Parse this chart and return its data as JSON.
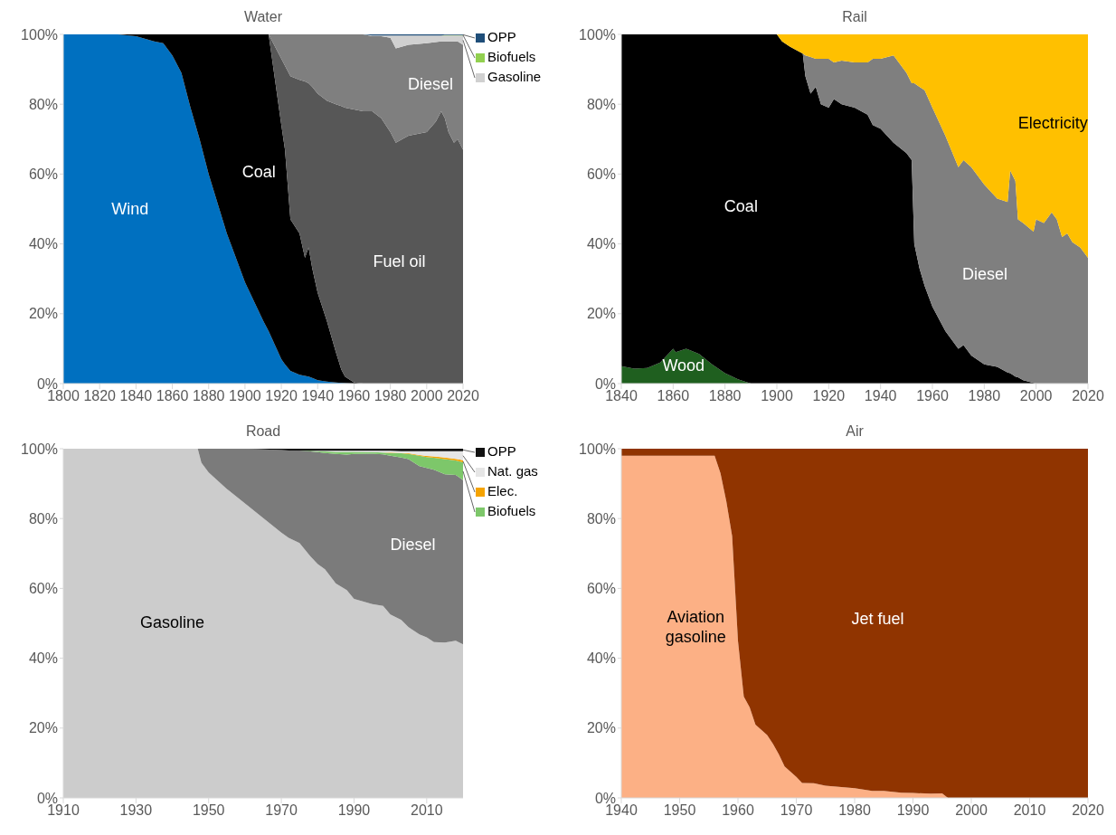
{
  "chart_data": [
    {
      "type": "area",
      "title": "Water",
      "stacked": true,
      "legend": "right",
      "x": [
        1800,
        1810,
        1820,
        1830,
        1840,
        1850,
        1855,
        1860,
        1865,
        1870,
        1875,
        1880,
        1890,
        1900,
        1910,
        1913,
        1920,
        1922,
        1925,
        1930,
        1933,
        1935,
        1937,
        1940,
        1945,
        1950,
        1953,
        1955,
        1960,
        1965,
        1970,
        1975,
        1980,
        1983,
        1990,
        2000,
        2005,
        2008,
        2010,
        2012,
        2015,
        2017,
        2020
      ],
      "xlim": [
        1800,
        2020
      ],
      "xticks": [
        1800,
        1820,
        1840,
        1860,
        1880,
        1900,
        1920,
        1940,
        1960,
        1980,
        2000,
        2020
      ],
      "ylim": [
        0,
        100
      ],
      "yticks": [
        {
          "value": 0,
          "label": "0%"
        },
        {
          "value": 20,
          "label": "20%"
        },
        {
          "value": 40,
          "label": "40%"
        },
        {
          "value": 60,
          "label": "60%"
        },
        {
          "value": 80,
          "label": "80%"
        },
        {
          "value": 100,
          "label": "100%"
        }
      ],
      "series": [
        {
          "name": "Wind",
          "color": "#0070c0",
          "values": [
            100,
            100,
            100,
            100,
            99.5,
            98,
            97.5,
            94,
            89,
            79,
            70,
            60,
            43,
            29,
            18,
            15,
            7,
            5.5,
            3.6,
            2.5,
            2.2,
            2,
            1.6,
            1,
            0.6,
            0.3,
            0.2,
            0.1,
            0,
            null,
            null,
            null,
            null,
            null,
            null,
            null,
            null,
            null,
            null,
            null,
            null,
            null,
            null
          ]
        },
        {
          "name": "Coal",
          "color": "#000000",
          "values": [
            null,
            null,
            null,
            0,
            0.5,
            2,
            2.5,
            6,
            11,
            21,
            30,
            40,
            57,
            71,
            82,
            85,
            67,
            61.5,
            43.4,
            40.5,
            33.8,
            37,
            31.4,
            25,
            17.4,
            8.7,
            3.8,
            1.9,
            0.3,
            0,
            null,
            null,
            null,
            null,
            null,
            null,
            null,
            null,
            null,
            null,
            null,
            null,
            null
          ]
        },
        {
          "name": "Fuel oil",
          "color": "#575757",
          "values": [
            null,
            null,
            null,
            null,
            null,
            null,
            null,
            null,
            null,
            null,
            null,
            null,
            null,
            null,
            null,
            0,
            19,
            24,
            41,
            44,
            50.5,
            47,
            52,
            57,
            63,
            71,
            75.5,
            77,
            78.2,
            78,
            78,
            76,
            72,
            69,
            71,
            72,
            75,
            78,
            76,
            72,
            69,
            70,
            67
          ]
        },
        {
          "name": "Diesel",
          "color": "#7f7f7f",
          "values": [
            null,
            null,
            null,
            null,
            null,
            null,
            null,
            null,
            null,
            null,
            null,
            null,
            null,
            null,
            null,
            0,
            7,
            9,
            12,
            13,
            13.5,
            14,
            15,
            17,
            19,
            20,
            20.5,
            21,
            21.5,
            22,
            21.5,
            23.5,
            27,
            27,
            26,
            25.5,
            22.8,
            20,
            22,
            26,
            29,
            28,
            30
          ]
        },
        {
          "name": "Gasoline",
          "color": "#d0d0d0",
          "values": [
            null,
            null,
            null,
            null,
            null,
            null,
            null,
            null,
            null,
            null,
            null,
            null,
            null,
            null,
            null,
            null,
            null,
            null,
            null,
            null,
            null,
            null,
            null,
            null,
            null,
            null,
            null,
            null,
            null,
            0,
            0.2,
            0.2,
            0.7,
            3.7,
            2.7,
            2.2,
            1.9,
            1.7,
            1.7,
            1.7,
            1.7,
            1.7,
            2.7
          ]
        },
        {
          "name": "Biofuels",
          "color": "#92d050",
          "values": [
            null,
            null,
            null,
            null,
            null,
            null,
            null,
            null,
            null,
            null,
            null,
            null,
            null,
            null,
            null,
            null,
            null,
            null,
            null,
            null,
            null,
            null,
            null,
            null,
            null,
            null,
            null,
            null,
            null,
            null,
            null,
            null,
            null,
            null,
            null,
            null,
            null,
            0,
            0.1,
            0.1,
            0.1,
            0.1,
            0.1
          ]
        },
        {
          "name": "OPP",
          "color": "#1f4e79",
          "values": [
            null,
            null,
            null,
            null,
            null,
            null,
            null,
            null,
            null,
            null,
            null,
            null,
            null,
            null,
            null,
            null,
            null,
            null,
            null,
            null,
            null,
            null,
            null,
            null,
            null,
            null,
            null,
            null,
            null,
            0,
            0.3,
            0.3,
            0.3,
            0.3,
            0.3,
            0.3,
            0.3,
            0.3,
            0.2,
            0.2,
            0.2,
            0.2,
            0.2
          ]
        }
      ]
    },
    {
      "type": "area",
      "title": "Rail",
      "stacked": true,
      "x": [
        1840,
        1845,
        1850,
        1855,
        1860,
        1861,
        1865,
        1870,
        1875,
        1880,
        1885,
        1890,
        1900,
        1902,
        1905,
        1910,
        1911,
        1913,
        1915,
        1917,
        1920,
        1922,
        1925,
        1930,
        1935,
        1937,
        1940,
        1945,
        1950,
        1952,
        1953,
        1955,
        1957,
        1960,
        1965,
        1970,
        1972,
        1975,
        1980,
        1985,
        1989,
        1990,
        1992,
        1993,
        1995,
        1999,
        2000,
        2003,
        2006,
        2008,
        2010,
        2012,
        2014,
        2017,
        2020
      ],
      "xlim": [
        1840,
        2020
      ],
      "xticks": [
        1840,
        1860,
        1880,
        1900,
        1920,
        1940,
        1960,
        1980,
        2000,
        2020
      ],
      "ylim": [
        0,
        100
      ],
      "yticks": [
        {
          "value": 0,
          "label": "0%"
        },
        {
          "value": 20,
          "label": "20%"
        },
        {
          "value": 40,
          "label": "40%"
        },
        {
          "value": 60,
          "label": "60%"
        },
        {
          "value": 80,
          "label": "80%"
        },
        {
          "value": 100,
          "label": "100%"
        }
      ],
      "series": [
        {
          "name": "Wood",
          "color": "#1f5f1f",
          "values": [
            5,
            4.3,
            4.5,
            6,
            10,
            9,
            10,
            8.5,
            5.5,
            3,
            1.2,
            0,
            null,
            null,
            null,
            null,
            null,
            null,
            null,
            null,
            null,
            null,
            null,
            null,
            null,
            null,
            null,
            null,
            null,
            null,
            null,
            null,
            null,
            null,
            null,
            null,
            null,
            null,
            null,
            null,
            null,
            null,
            null,
            null,
            null,
            null,
            null,
            null,
            null,
            null,
            null,
            null,
            null,
            null,
            null
          ]
        },
        {
          "name": "Coal",
          "color": "#000000",
          "values": [
            95,
            95.7,
            95.5,
            94,
            90,
            91,
            90,
            91.5,
            94.5,
            97,
            98.8,
            100,
            100,
            98,
            96.5,
            94.5,
            88,
            83,
            85,
            80,
            79,
            81.5,
            80,
            79,
            77,
            74,
            73,
            69,
            66,
            64,
            40,
            33,
            28,
            22,
            15,
            10,
            11,
            8,
            5.5,
            4.8,
            3.2,
            3,
            2,
            1.8,
            1,
            0.2,
            0,
            null,
            null,
            null,
            null,
            null,
            null,
            null,
            null
          ]
        },
        {
          "name": "Diesel",
          "color": "#7f7f7f",
          "values": [
            null,
            null,
            null,
            null,
            null,
            null,
            null,
            null,
            null,
            null,
            null,
            null,
            null,
            null,
            null,
            0,
            6,
            10.5,
            8,
            13,
            14,
            10.5,
            12.5,
            13,
            15,
            19,
            20,
            25,
            23,
            22,
            46,
            52,
            56,
            57,
            56,
            52,
            53,
            54,
            51.5,
            48.2,
            48.8,
            58,
            56,
            45.2,
            45,
            43.3,
            47,
            46,
            49,
            47,
            42,
            43,
            40.5,
            39,
            36
          ]
        },
        {
          "name": "Electricity",
          "color": "#ffc000",
          "values": [
            null,
            null,
            null,
            null,
            null,
            null,
            null,
            null,
            null,
            null,
            null,
            null,
            0,
            2,
            3.5,
            5.5,
            6,
            6.5,
            7,
            7,
            7,
            8,
            7.5,
            8,
            8,
            7,
            7,
            6,
            11,
            14,
            14,
            15,
            16,
            21,
            29,
            38,
            36,
            38,
            43,
            47,
            48,
            39,
            42,
            53,
            54,
            56.5,
            53,
            54,
            51,
            53,
            58,
            57,
            59.5,
            61,
            64
          ]
        }
      ]
    },
    {
      "type": "area",
      "title": "Road",
      "stacked": true,
      "legend": "right",
      "x": [
        1910,
        1920,
        1930,
        1940,
        1947,
        1948,
        1950,
        1955,
        1960,
        1970,
        1972,
        1975,
        1978,
        1980,
        1982,
        1985,
        1988,
        1990,
        1995,
        1998,
        2000,
        2003,
        2005,
        2008,
        2010,
        2012,
        2015,
        2018,
        2020
      ],
      "xlim": [
        1910,
        2020
      ],
      "xticks": [
        1910,
        1930,
        1950,
        1970,
        1990,
        2010
      ],
      "ylim": [
        0,
        100
      ],
      "yticks": [
        {
          "value": 0,
          "label": "0%"
        },
        {
          "value": 20,
          "label": "20%"
        },
        {
          "value": 40,
          "label": "40%"
        },
        {
          "value": 60,
          "label": "60%"
        },
        {
          "value": 80,
          "label": "80%"
        },
        {
          "value": 100,
          "label": "100%"
        }
      ],
      "series": [
        {
          "name": "Gasoline",
          "color": "#cccccc",
          "values": [
            100,
            100,
            100,
            100,
            100,
            96,
            93.2,
            88.5,
            84.3,
            76,
            74.5,
            73,
            69.2,
            67,
            65.5,
            61.4,
            59.5,
            57,
            55.5,
            55,
            52.5,
            51,
            48.9,
            46.8,
            46,
            44.6,
            44.5,
            45,
            44
          ]
        },
        {
          "name": "Diesel",
          "color": "#7b7b7b",
          "values": [
            null,
            null,
            null,
            null,
            0,
            4,
            6.8,
            11.5,
            15.7,
            23.6,
            25,
            26.4,
            30,
            32,
            33.3,
            37.1,
            38.8,
            41.5,
            43.1,
            43.4,
            45.5,
            46.5,
            48.1,
            48.2,
            48.5,
            49.4,
            48.2,
            47.5,
            47
          ]
        },
        {
          "name": "Biofuels",
          "color": "#7dc76a",
          "values": [
            null,
            null,
            null,
            null,
            null,
            null,
            null,
            null,
            null,
            null,
            null,
            0,
            0.2,
            0.3,
            0.4,
            0.6,
            0.8,
            0.6,
            0.4,
            0.5,
            0.8,
            1.2,
            1.5,
            3,
            3.1,
            3.4,
            4.3,
            4.1,
            5.1
          ]
        },
        {
          "name": "Elec.",
          "color": "#f5a300",
          "values": [
            null,
            null,
            null,
            null,
            null,
            null,
            null,
            null,
            null,
            null,
            null,
            null,
            null,
            null,
            null,
            null,
            null,
            null,
            null,
            0,
            0.1,
            0.1,
            0.2,
            0.2,
            0.3,
            0.4,
            0.5,
            0.5,
            0.6
          ]
        },
        {
          "name": "Nat. gas",
          "color": "#e6e6e6",
          "values": [
            null,
            null,
            null,
            null,
            null,
            null,
            null,
            null,
            null,
            null,
            null,
            null,
            0,
            0.1,
            0.2,
            0.3,
            0.3,
            0.3,
            0.4,
            0.5,
            0.5,
            0.5,
            0.6,
            1.1,
            1.4,
            1.5,
            1.8,
            2.2,
            2.6
          ]
        },
        {
          "name": "OPP",
          "color": "#111111",
          "values": [
            null,
            null,
            null,
            null,
            null,
            null,
            null,
            null,
            0,
            0.4,
            0.5,
            0.6,
            0.6,
            0.6,
            0.6,
            0.6,
            0.6,
            0.6,
            0.6,
            0.6,
            0.6,
            0.7,
            0.7,
            0.7,
            0.7,
            0.7,
            0.7,
            0.7,
            0.7
          ]
        }
      ]
    },
    {
      "type": "area",
      "title": "Air",
      "stacked": true,
      "x": [
        1940,
        1956,
        1957,
        1958,
        1959,
        1960,
        1961,
        1962,
        1963,
        1965,
        1966,
        1967,
        1968,
        1970,
        1971,
        1973,
        1975,
        1980,
        1983,
        1985,
        1988,
        1990,
        1993,
        1995,
        1996,
        2000,
        2010,
        2020
      ],
      "xlim": [
        1940,
        2020
      ],
      "xticks": [
        1940,
        1950,
        1960,
        1970,
        1980,
        1990,
        2000,
        2010,
        2020
      ],
      "ylim": [
        0,
        100
      ],
      "yticks": [
        {
          "value": 0,
          "label": "0%"
        },
        {
          "value": 20,
          "label": "20%"
        },
        {
          "value": 40,
          "label": "40%"
        },
        {
          "value": 60,
          "label": "60%"
        },
        {
          "value": 80,
          "label": "80%"
        },
        {
          "value": 100,
          "label": "100%"
        }
      ],
      "series": [
        {
          "name": "Aviation gasoline",
          "color": "#fcb085",
          "values": [
            98,
            98,
            93,
            85,
            75,
            45,
            29,
            26,
            21,
            18,
            15.5,
            12.5,
            9,
            6,
            4.3,
            4.2,
            3.5,
            2.8,
            2,
            2,
            1.5,
            1.4,
            1.2,
            1.3,
            0,
            null,
            null,
            null
          ]
        },
        {
          "name": "Jet fuel",
          "color": "#903400",
          "values": [
            2,
            2,
            7,
            15,
            25,
            55,
            71,
            74,
            79,
            82,
            84.5,
            87.5,
            91,
            94,
            95.7,
            95.8,
            96.5,
            97.2,
            98,
            98,
            98.5,
            98.6,
            98.8,
            98.7,
            100,
            100,
            100,
            100
          ]
        }
      ]
    }
  ]
}
